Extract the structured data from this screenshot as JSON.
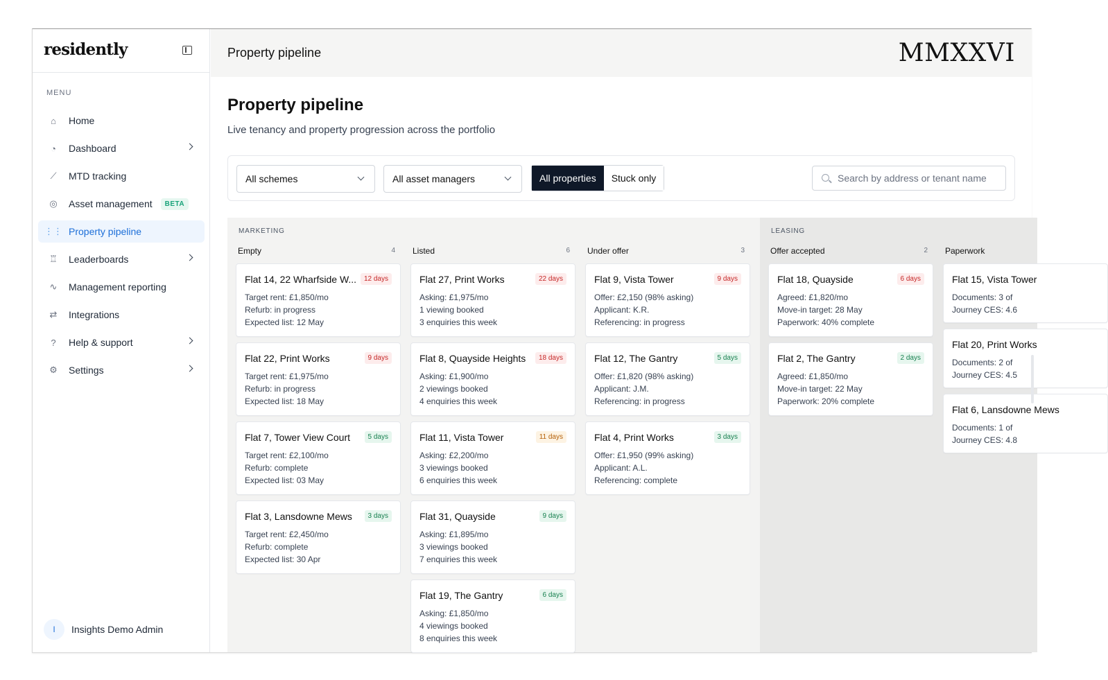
{
  "app": {
    "logo": "residently",
    "topbar_title": "Property pipeline",
    "year_mark": "MMXXVI"
  },
  "sidebar": {
    "menu_label": "MENU",
    "items": [
      {
        "label": "Home",
        "icon": "home-icon",
        "has_chevron": false
      },
      {
        "label": "Dashboard",
        "icon": "dashboard-icon",
        "has_chevron": true
      },
      {
        "label": "MTD tracking",
        "icon": "chart-icon",
        "has_chevron": false
      },
      {
        "label": "Asset management",
        "icon": "target-icon",
        "has_chevron": false,
        "badge": "BETA"
      },
      {
        "label": "Property pipeline",
        "icon": "pipeline-icon",
        "has_chevron": false,
        "active": true
      },
      {
        "label": "Leaderboards",
        "icon": "trophy-icon",
        "has_chevron": true
      },
      {
        "label": "Management reporting",
        "icon": "report-icon",
        "has_chevron": false
      },
      {
        "label": "Integrations",
        "icon": "link-icon",
        "has_chevron": false
      },
      {
        "label": "Help & support",
        "icon": "help-icon",
        "has_chevron": true
      },
      {
        "label": "Settings",
        "icon": "gear-icon",
        "has_chevron": true
      }
    ],
    "user": {
      "initial": "I",
      "name": "Insights Demo Admin"
    }
  },
  "page": {
    "title": "Property pipeline",
    "subtitle": "Live tenancy and property progression across the portfolio"
  },
  "filters": {
    "scheme": "All schemes",
    "asset_manager": "All asset managers",
    "toggle": [
      "All properties",
      "Stuck only"
    ],
    "search_placeholder": "Search by address or tenant name"
  },
  "groups": [
    {
      "label": "MARKETING",
      "columns": [
        {
          "title": "Empty",
          "count": "4",
          "cards": [
            {
              "title": "Flat 14, 22 Wharfside W...",
              "badge": "12 days",
              "tone": "red",
              "lines": [
                "Target rent: £1,850/mo",
                "Refurb: in progress",
                "Expected list: 12 May"
              ]
            },
            {
              "title": "Flat 22, Print Works",
              "badge": "9 days",
              "tone": "red",
              "lines": [
                "Target rent: £1,975/mo",
                "Refurb: in progress",
                "Expected list: 18 May"
              ]
            },
            {
              "title": "Flat 7, Tower View Court",
              "badge": "5 days",
              "tone": "green",
              "lines": [
                "Target rent: £2,100/mo",
                "Refurb: complete",
                "Expected list: 03 May"
              ]
            },
            {
              "title": "Flat 3, Lansdowne Mews",
              "badge": "3 days",
              "tone": "green",
              "lines": [
                "Target rent: £2,450/mo",
                "Refurb: complete",
                "Expected list: 30 Apr"
              ]
            }
          ]
        },
        {
          "title": "Listed",
          "count": "6",
          "cards": [
            {
              "title": "Flat 27, Print Works",
              "badge": "22 days",
              "tone": "red",
              "lines": [
                "Asking: £1,975/mo",
                "1 viewing booked",
                "3 enquiries this week"
              ]
            },
            {
              "title": "Flat 8, Quayside Heights",
              "badge": "18 days",
              "tone": "red",
              "lines": [
                "Asking: £1,900/mo",
                "2 viewings booked",
                "4 enquiries this week"
              ]
            },
            {
              "title": "Flat 11, Vista Tower",
              "badge": "11 days",
              "tone": "amber",
              "lines": [
                "Asking: £2,200/mo",
                "3 viewings booked",
                "6 enquiries this week"
              ]
            },
            {
              "title": "Flat 31, Quayside",
              "badge": "9 days",
              "tone": "green",
              "lines": [
                "Asking: £1,895/mo",
                "3 viewings booked",
                "7 enquiries this week"
              ]
            },
            {
              "title": "Flat 19, The Gantry",
              "badge": "6 days",
              "tone": "green",
              "lines": [
                "Asking: £1,850/mo",
                "4 viewings booked",
                "8 enquiries this week"
              ]
            }
          ]
        },
        {
          "title": "Under offer",
          "count": "3",
          "cards": [
            {
              "title": "Flat 9, Vista Tower",
              "badge": "9 days",
              "tone": "red",
              "lines": [
                "Offer: £2,150 (98% asking)",
                "Applicant: K.R.",
                "Referencing: in progress"
              ]
            },
            {
              "title": "Flat 12, The Gantry",
              "badge": "5 days",
              "tone": "green",
              "lines": [
                "Offer: £1,820 (98% asking)",
                "Applicant: J.M.",
                "Referencing: in progress"
              ]
            },
            {
              "title": "Flat 4, Print Works",
              "badge": "3 days",
              "tone": "green",
              "lines": [
                "Offer: £1,950 (99% asking)",
                "Applicant: A.L.",
                "Referencing: complete"
              ]
            }
          ]
        }
      ]
    },
    {
      "label": "LEASING",
      "columns": [
        {
          "title": "Offer accepted",
          "count": "2",
          "cards": [
            {
              "title": "Flat 18, Quayside",
              "badge": "6 days",
              "tone": "red",
              "lines": [
                "Agreed: £1,820/mo",
                "Move-in target: 28 May",
                "Paperwork: 40% complete"
              ]
            },
            {
              "title": "Flat 2, The Gantry",
              "badge": "2 days",
              "tone": "green",
              "lines": [
                "Agreed: £1,850/mo",
                "Move-in target: 22 May",
                "Paperwork: 20% complete"
              ]
            }
          ]
        },
        {
          "title": "Paperwork",
          "count": "",
          "cards": [
            {
              "title": "Flat 15, Vista Tower",
              "badge": "",
              "tone": "",
              "short": true,
              "lines": [
                "Documents: 3 of",
                "Journey CES: 4.6"
              ]
            },
            {
              "title": "Flat 20, Print Works",
              "badge": "",
              "tone": "",
              "short": true,
              "lines": [
                "Documents: 2 of",
                "Journey CES: 4.5"
              ]
            },
            {
              "title": "Flat 6, Lansdowne Mews",
              "badge": "",
              "tone": "",
              "short": true,
              "lines": [
                "Documents: 1 of",
                "Journey CES: 4.8"
              ]
            }
          ]
        }
      ]
    }
  ],
  "colors": {
    "accent": "#1d6fd8",
    "dark_toggle": "#0f1828",
    "beta": "#19a37a"
  }
}
